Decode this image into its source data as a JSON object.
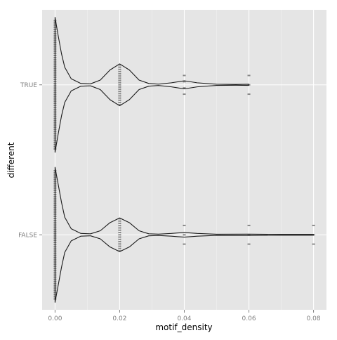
{
  "chart_data": {
    "type": "violin",
    "title": "",
    "xlabel": "motif_density",
    "ylabel": "different",
    "xlim": [
      -0.004,
      0.084
    ],
    "x_ticks": [
      {
        "value": 0.0,
        "label": "0.00"
      },
      {
        "value": 0.02,
        "label": "0.02"
      },
      {
        "value": 0.04,
        "label": "0.04"
      },
      {
        "value": 0.06,
        "label": "0.06"
      },
      {
        "value": 0.08,
        "label": "0.08"
      }
    ],
    "categories": [
      "FALSE",
      "TRUE"
    ],
    "grid": true,
    "panel_background": "#e5e5e5",
    "grid_color": "#ffffff",
    "point_color": "#333333",
    "series": [
      {
        "category": "TRUE",
        "violin_profile": [
          {
            "x": 0.0,
            "w": 1.0
          },
          {
            "x": 0.001,
            "w": 0.72
          },
          {
            "x": 0.002,
            "w": 0.46
          },
          {
            "x": 0.003,
            "w": 0.26
          },
          {
            "x": 0.005,
            "w": 0.09
          },
          {
            "x": 0.008,
            "w": 0.02
          },
          {
            "x": 0.011,
            "w": 0.015
          },
          {
            "x": 0.014,
            "w": 0.07
          },
          {
            "x": 0.017,
            "w": 0.22
          },
          {
            "x": 0.02,
            "w": 0.31
          },
          {
            "x": 0.023,
            "w": 0.22
          },
          {
            "x": 0.026,
            "w": 0.07
          },
          {
            "x": 0.029,
            "w": 0.02
          },
          {
            "x": 0.032,
            "w": 0.01
          },
          {
            "x": 0.036,
            "w": 0.03
          },
          {
            "x": 0.04,
            "w": 0.06
          },
          {
            "x": 0.044,
            "w": 0.03
          },
          {
            "x": 0.05,
            "w": 0.008
          },
          {
            "x": 0.056,
            "w": 0.006
          },
          {
            "x": 0.06,
            "w": 0.008
          }
        ],
        "points_x": [
          0.0,
          0.02,
          0.04,
          0.06
        ]
      },
      {
        "category": "FALSE",
        "violin_profile": [
          {
            "x": 0.0,
            "w": 1.0
          },
          {
            "x": 0.001,
            "w": 0.74
          },
          {
            "x": 0.002,
            "w": 0.48
          },
          {
            "x": 0.003,
            "w": 0.26
          },
          {
            "x": 0.005,
            "w": 0.09
          },
          {
            "x": 0.008,
            "w": 0.02
          },
          {
            "x": 0.011,
            "w": 0.015
          },
          {
            "x": 0.014,
            "w": 0.06
          },
          {
            "x": 0.017,
            "w": 0.18
          },
          {
            "x": 0.02,
            "w": 0.25
          },
          {
            "x": 0.023,
            "w": 0.18
          },
          {
            "x": 0.026,
            "w": 0.06
          },
          {
            "x": 0.029,
            "w": 0.015
          },
          {
            "x": 0.032,
            "w": 0.01
          },
          {
            "x": 0.036,
            "w": 0.02
          },
          {
            "x": 0.04,
            "w": 0.035
          },
          {
            "x": 0.044,
            "w": 0.02
          },
          {
            "x": 0.05,
            "w": 0.008
          },
          {
            "x": 0.06,
            "w": 0.01
          },
          {
            "x": 0.07,
            "w": 0.006
          },
          {
            "x": 0.08,
            "w": 0.006
          }
        ],
        "points_x": [
          0.0,
          0.02,
          0.04,
          0.06,
          0.08
        ]
      }
    ]
  }
}
